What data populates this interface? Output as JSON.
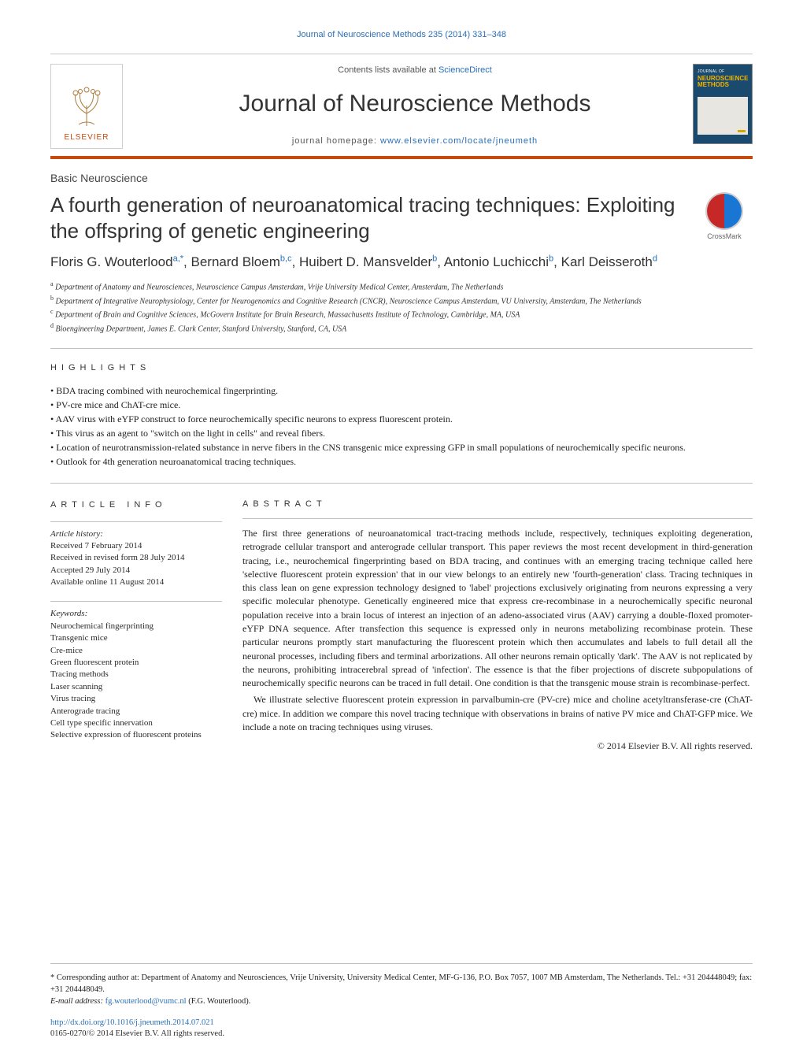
{
  "header": {
    "citation": "Journal of Neuroscience Methods 235 (2014) 331–348",
    "contents_prefix": "Contents lists available at ",
    "contents_link": "ScienceDirect",
    "journal_title": "Journal of Neuroscience Methods",
    "homepage_prefix": "journal homepage: ",
    "homepage_link": "www.elsevier.com/locate/jneumeth",
    "publisher_logo_text": "ELSEVIER",
    "cover": {
      "top": "JOURNAL OF",
      "main": "NEUROSCIENCE METHODS"
    }
  },
  "colors": {
    "accent_orange": "#c64a0e",
    "link_blue": "#2a6fb8",
    "cover_bg": "#1a4a6e",
    "cover_title": "#f0b400",
    "rule": "#c0c0c0",
    "crossmark_left": "#c62828",
    "crossmark_right": "#1976d2"
  },
  "section_label": "Basic Neuroscience",
  "title": "A fourth generation of neuroanatomical tracing techniques: Exploiting the offspring of genetic engineering",
  "crossmark_label": "CrossMark",
  "authors_html": "Floris G. Wouterlood<sup>a,*</sup>, Bernard Bloem<sup>b,c</sup>, Huibert D. Mansvelder<sup>b</sup>, Antonio Luchicchi<sup>b</sup>, Karl Deisseroth<sup>d</sup>",
  "affiliations": [
    {
      "sup": "a",
      "text": "Department of Anatomy and Neurosciences, Neuroscience Campus Amsterdam, Vrije University Medical Center, Amsterdam, The Netherlands"
    },
    {
      "sup": "b",
      "text": "Department of Integrative Neurophysiology, Center for Neurogenomics and Cognitive Research (CNCR), Neuroscience Campus Amsterdam, VU University, Amsterdam, The Netherlands"
    },
    {
      "sup": "c",
      "text": "Department of Brain and Cognitive Sciences, McGovern Institute for Brain Research, Massachusetts Institute of Technology, Cambridge, MA, USA"
    },
    {
      "sup": "d",
      "text": "Bioengineering Department, James E. Clark Center, Stanford University, Stanford, CA, USA"
    }
  ],
  "highlights_heading": "highlights",
  "highlights": [
    "BDA tracing combined with neurochemical fingerprinting.",
    "PV-cre mice and ChAT-cre mice.",
    "AAV virus with eYFP construct to force neurochemically specific neurons to express fluorescent protein.",
    "This virus as an agent to \"switch on the light in cells\" and reveal fibers.",
    "Location of neurotransmission-related substance in nerve fibers in the CNS transgenic mice expressing GFP in small populations of neurochemically specific neurons.",
    "Outlook for 4th generation neuroanatomical tracing techniques."
  ],
  "article_info": {
    "heading": "article info",
    "history_label": "Article history:",
    "history": [
      "Received 7 February 2014",
      "Received in revised form 28 July 2014",
      "Accepted 29 July 2014",
      "Available online 11 August 2014"
    ],
    "keywords_label": "Keywords:",
    "keywords": [
      "Neurochemical fingerprinting",
      "Transgenic mice",
      "Cre-mice",
      "Green fluorescent protein",
      "Tracing methods",
      "Laser scanning",
      "Virus tracing",
      "Anterograde tracing",
      "Cell type specific innervation",
      "Selective expression of fluorescent proteins"
    ]
  },
  "abstract": {
    "heading": "abstract",
    "paragraphs": [
      "The first three generations of neuroanatomical tract-tracing methods include, respectively, techniques exploiting degeneration, retrograde cellular transport and anterograde cellular transport. This paper reviews the most recent development in third-generation tracing, i.e., neurochemical fingerprinting based on BDA tracing, and continues with an emerging tracing technique called here 'selective fluorescent protein expression' that in our view belongs to an entirely new 'fourth-generation' class. Tracing techniques in this class lean on gene expression technology designed to 'label' projections exclusively originating from neurons expressing a very specific molecular phenotype. Genetically engineered mice that express cre-recombinase in a neurochemically specific neuronal population receive into a brain locus of interest an injection of an adeno-associated virus (AAV) carrying a double-floxed promoter-eYFP DNA sequence. After transfection this sequence is expressed only in neurons metabolizing recombinase protein. These particular neurons promptly start manufacturing the fluorescent protein which then accumulates and labels to full detail all the neuronal processes, including fibers and terminal arborizations. All other neurons remain optically 'dark'. The AAV is not replicated by the neurons, prohibiting intracerebral spread of 'infection'. The essence is that the fiber projections of discrete subpopulations of neurochemically specific neurons can be traced in full detail. One condition is that the transgenic mouse strain is recombinase-perfect.",
      "We illustrate selective fluorescent protein expression in parvalbumin-cre (PV-cre) mice and choline acetyltransferase-cre (ChAT-cre) mice. In addition we compare this novel tracing technique with observations in brains of native PV mice and ChAT-GFP mice. We include a note on tracing techniques using viruses."
    ],
    "copyright": "© 2014 Elsevier B.V. All rights reserved."
  },
  "footnote": {
    "corresponding": "* Corresponding author at: Department of Anatomy and Neurosciences, Vrije University, University Medical Center, MF-G-136, P.O. Box 7057, 1007 MB Amsterdam, The Netherlands. Tel.: +31 204448049; fax: +31 204448049.",
    "email_label": "E-mail address: ",
    "email": "fg.wouterlood@vumc.nl",
    "email_suffix": " (F.G. Wouterlood)."
  },
  "doi": {
    "link": "http://dx.doi.org/10.1016/j.jneumeth.2014.07.021",
    "issn_line": "0165-0270/© 2014 Elsevier B.V. All rights reserved."
  },
  "typography": {
    "journal_title_fontsize": 30,
    "article_title_fontsize": 26,
    "authors_fontsize": 17,
    "body_fontsize": 12,
    "small_fontsize": 11,
    "footnote_fontsize": 10.5
  }
}
